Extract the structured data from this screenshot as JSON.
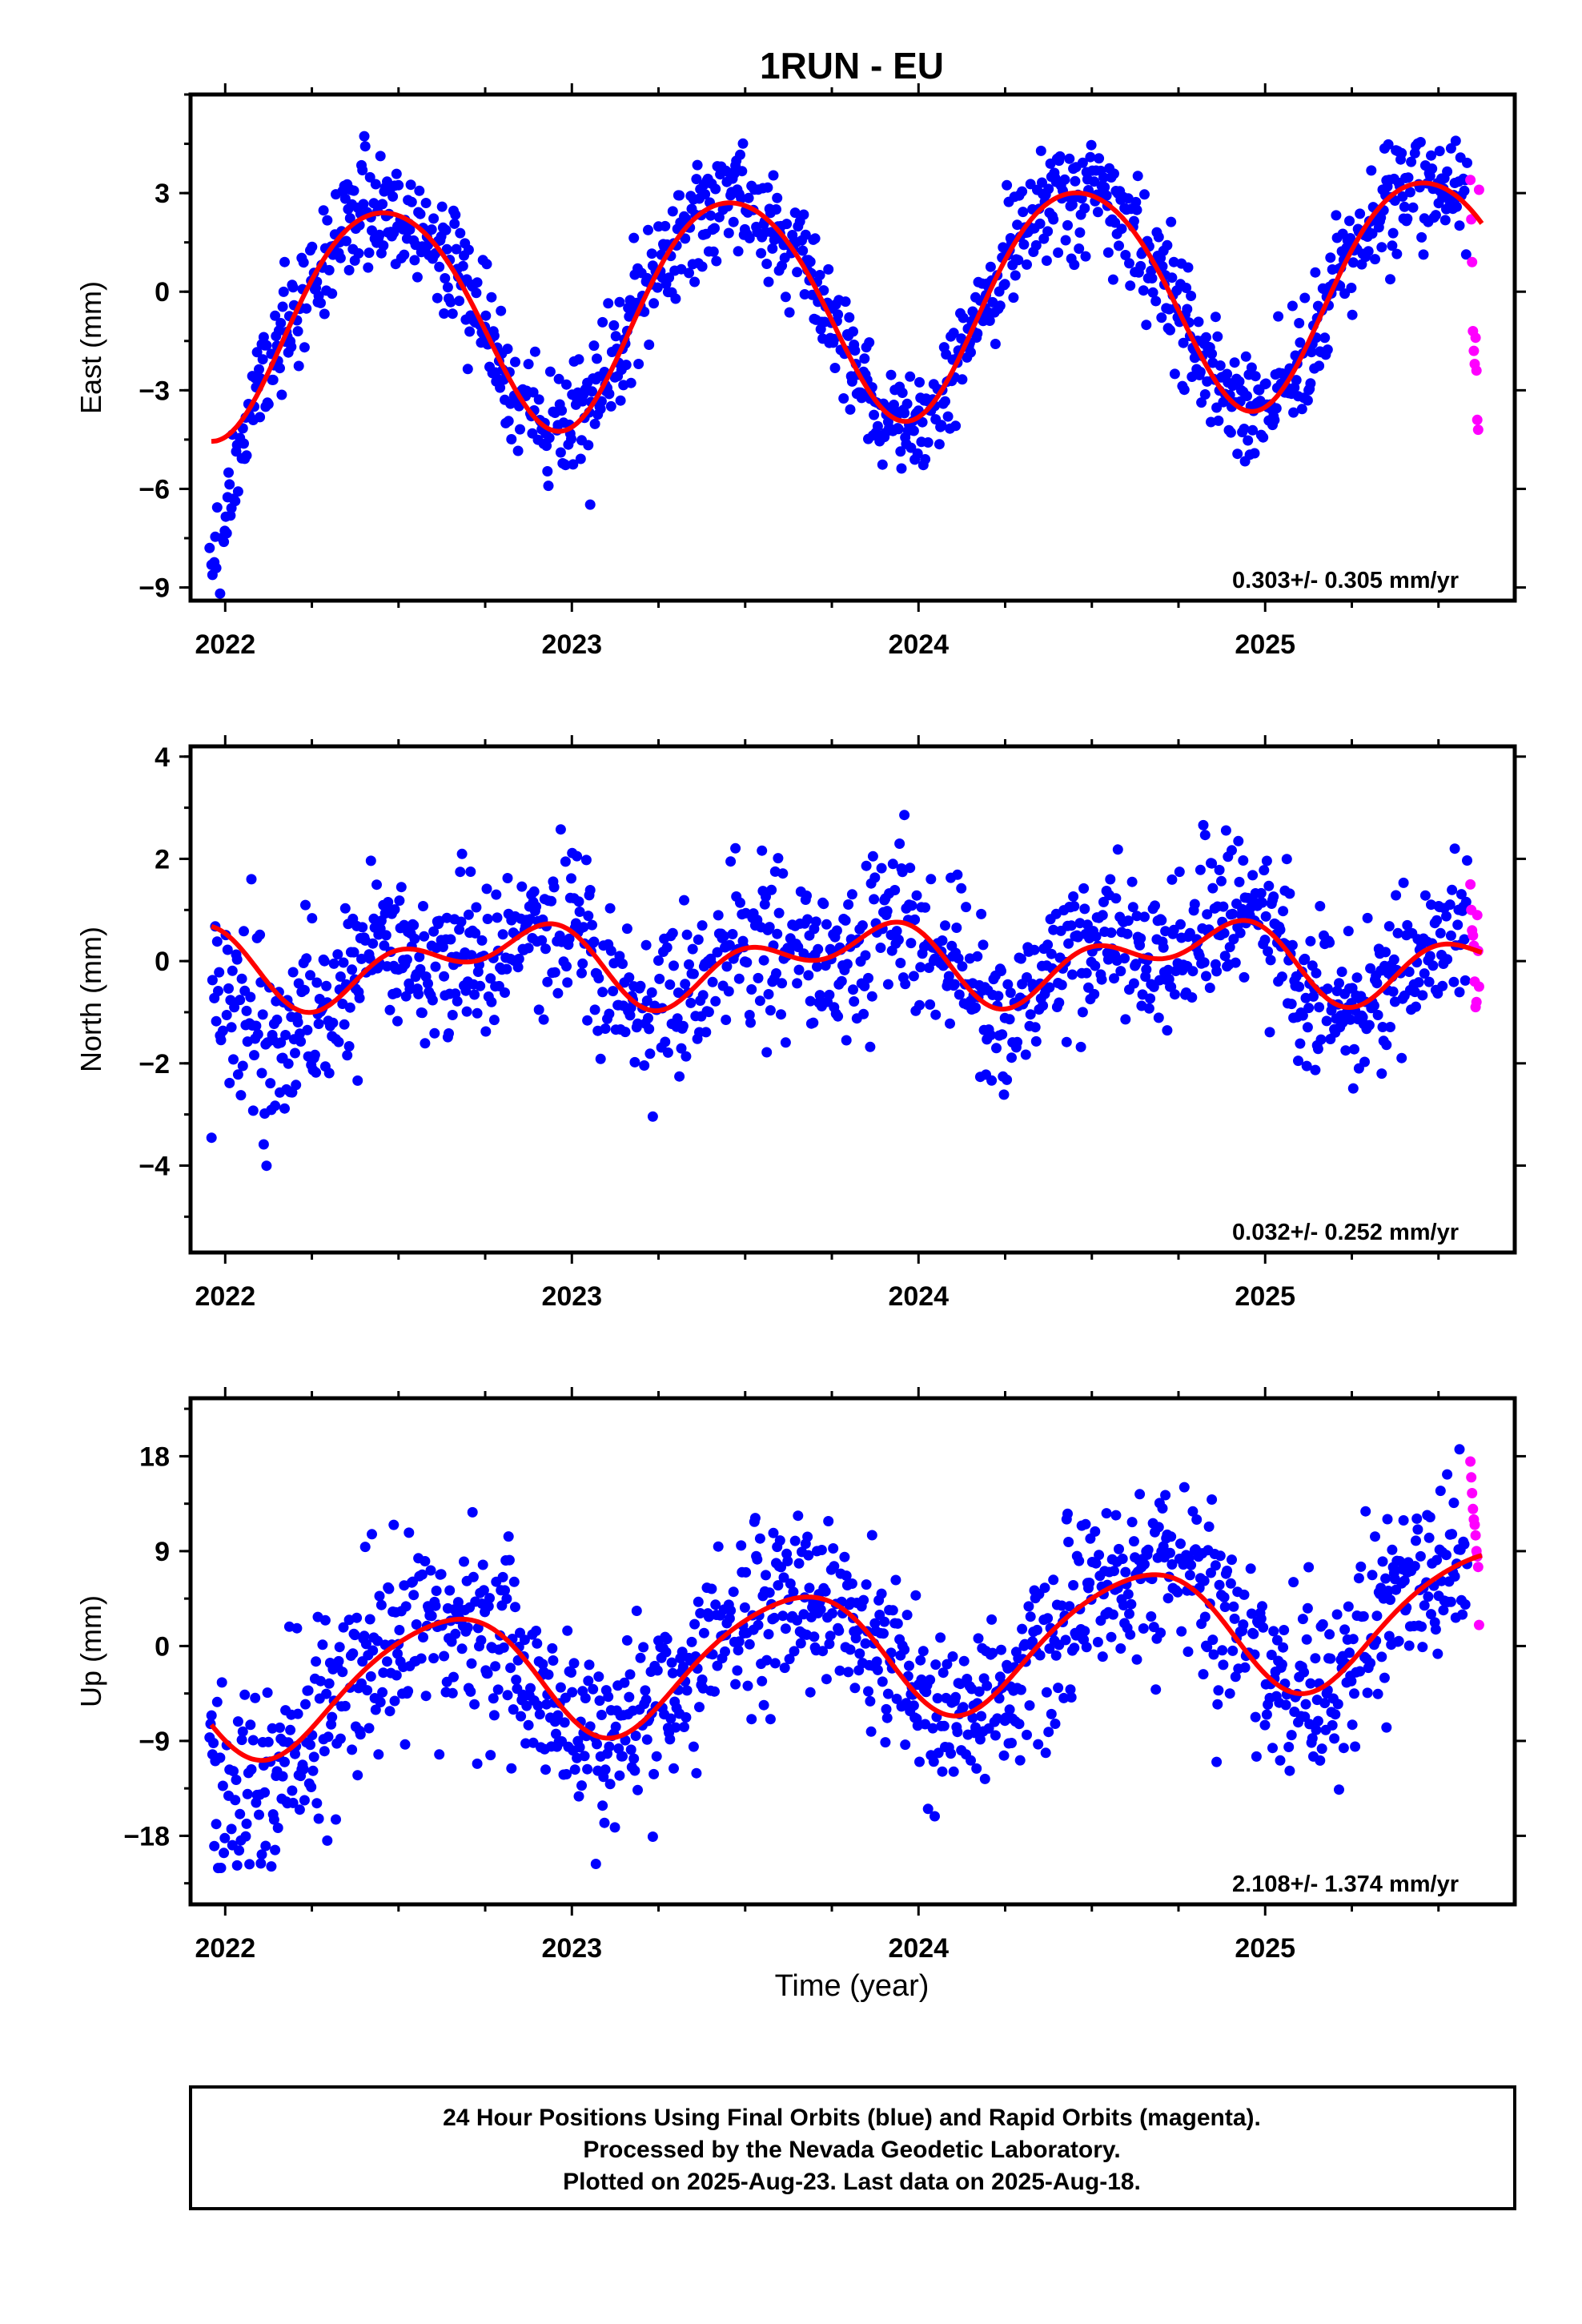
{
  "title": "1RUN - EU",
  "x_axis_label": "Time (year)",
  "footer": {
    "line1": "24 Hour Positions Using Final Orbits (blue) and Rapid Orbits (magenta).",
    "line2": "Processed by the Nevada Geodetic Laboratory.",
    "line3": "Plotted on 2025-Aug-23. Last data on 2025-Aug-18."
  },
  "colors": {
    "final": "#0000ff",
    "rapid": "#ff00ff",
    "fit": "#ff0000",
    "frame": "#000000"
  },
  "chart_data": [
    {
      "type": "scatter",
      "ylabel": "East (mm)",
      "xlim": [
        2021.9,
        2025.72
      ],
      "ylim": [
        -9.4,
        6.0
      ],
      "xticks": [
        2022,
        2023,
        2024,
        2025
      ],
      "yticks": [
        -9,
        -6,
        -3,
        0,
        3
      ],
      "grid": false,
      "rate_label": "0.303+/- 0.305 mm/yr",
      "fit": {
        "rate": 0.303,
        "amp1": 3.4,
        "phase1": 0.21,
        "amp2": 0.3,
        "phase2": 0.1,
        "offset": -0.3,
        "t0": 2023.8
      },
      "scatter": {
        "sigma": 0.85,
        "seed": 11
      },
      "anomaly": {
        "start": 2021.95,
        "end": 2022.1,
        "offset": -3.2,
        "sigma": 1.0
      },
      "rapid_values": [
        3.4,
        2.2,
        0.9,
        -1.2,
        -1.8,
        -2.2,
        -1.4,
        -2.4,
        -3.9,
        -4.2,
        3.1
      ]
    },
    {
      "type": "scatter",
      "ylabel": "North (mm)",
      "xlim": [
        2021.9,
        2025.72
      ],
      "ylim": [
        -5.7,
        4.2
      ],
      "xticks": [
        2022,
        2023,
        2024,
        2025
      ],
      "yticks": [
        -4,
        -2,
        0,
        2,
        4
      ],
      "grid": false,
      "rate_label": "0.032+/- 0.252 mm/yr",
      "fit": {
        "rate": 0.032,
        "amp1": 0.55,
        "phase1": 0.55,
        "amp2": 0.45,
        "phase2": 0.85,
        "offset": 0.0,
        "t0": 2023.8
      },
      "scatter": {
        "sigma": 0.75,
        "seed": 23
      },
      "anomaly": {
        "start": 2021.95,
        "end": 2022.3,
        "offset": -1.8,
        "sigma": 1.1
      },
      "rapid_values": [
        1.5,
        1.0,
        0.6,
        0.5,
        0.3,
        -0.4,
        -0.9,
        -0.8,
        0.9,
        0.2,
        -0.5
      ]
    },
    {
      "type": "scatter",
      "ylabel": "Up (mm)",
      "xlim": [
        2021.9,
        2025.72
      ],
      "ylim": [
        -24.5,
        23.5
      ],
      "xticks": [
        2022,
        2023,
        2024,
        2025
      ],
      "yticks": [
        -18,
        -9,
        0,
        9,
        18
      ],
      "grid": false,
      "rate_label": "2.108+/- 1.374 mm/yr",
      "fit": {
        "rate": 2.108,
        "amp1": 6.0,
        "phase1": 0.38,
        "amp2": 0.8,
        "phase2": 0.2,
        "offset": -0.6,
        "t0": 2023.8
      },
      "scatter": {
        "sigma": 4.2,
        "seed": 37
      },
      "anomaly": {
        "start": 2021.95,
        "end": 2022.3,
        "offset": -3.0,
        "sigma": 5.0
      },
      "rapid_values": [
        17.5,
        16.0,
        14.5,
        13.0,
        12.0,
        11.5,
        10.5,
        9.0,
        8.5,
        7.5,
        2.0
      ]
    }
  ]
}
